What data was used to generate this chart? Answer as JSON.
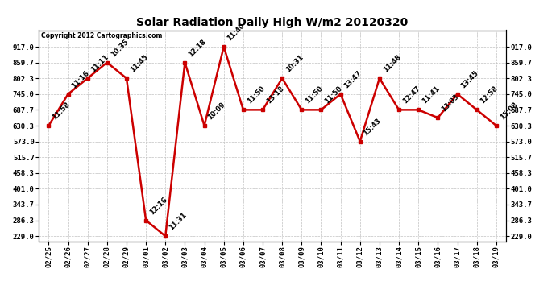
{
  "title": "Solar Radiation Daily High W/m2 20120320",
  "copyright": "Copyright 2012 Cartographics.com",
  "dates": [
    "02/25",
    "02/26",
    "02/27",
    "02/28",
    "02/29",
    "03/01",
    "03/02",
    "03/03",
    "03/04",
    "03/05",
    "03/06",
    "03/07",
    "03/08",
    "03/09",
    "03/10",
    "03/11",
    "03/12",
    "03/13",
    "03/14",
    "03/15",
    "03/16",
    "03/17",
    "03/18",
    "03/19"
  ],
  "values": [
    630.3,
    745.0,
    802.3,
    859.7,
    802.3,
    286.3,
    229.0,
    859.7,
    630.3,
    917.0,
    687.7,
    687.7,
    802.3,
    687.7,
    687.7,
    745.0,
    573.0,
    802.3,
    687.7,
    687.7,
    659.0,
    745.0,
    687.7,
    630.3
  ],
  "annotations": [
    "11:58",
    "11:16",
    "11:11",
    "10:35",
    "11:45",
    "12:16",
    "11:31",
    "12:18",
    "10:09",
    "11:40",
    "11:50",
    "13:18",
    "10:31",
    "11:50",
    "11:50",
    "13:47",
    "15:43",
    "11:48",
    "12:47",
    "11:41",
    "13:03",
    "13:45",
    "12:58",
    "15:08"
  ],
  "yticks": [
    229.0,
    286.3,
    343.7,
    401.0,
    458.3,
    515.7,
    573.0,
    630.3,
    687.7,
    745.0,
    802.3,
    859.7,
    917.0
  ],
  "ymin": 229.0,
  "ymax": 917.0,
  "line_color": "#cc0000",
  "marker_color": "#cc0000",
  "bg_color": "#ffffff",
  "grid_color": "#bbbbbb",
  "title_fontsize": 10,
  "tick_fontsize": 6.5,
  "annotation_fontsize": 6.0,
  "copyright_fontsize": 5.5
}
